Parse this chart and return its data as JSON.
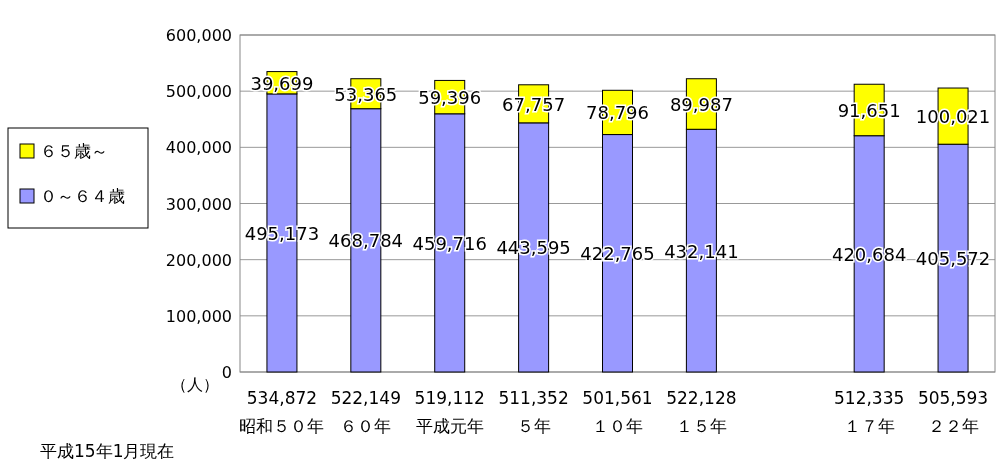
{
  "chart_data": {
    "type": "bar",
    "stacked": true,
    "ylabel": "（人）",
    "categories": [
      "昭和５０年",
      "６０年",
      "平成元年",
      "５年",
      "１０年",
      "１５年",
      null,
      "１７年",
      "２２年"
    ],
    "series": [
      {
        "name": "０～６４歳",
        "color": "#9999ff",
        "values": [
          495173,
          468784,
          459716,
          443595,
          422765,
          432141,
          null,
          420684,
          405572
        ],
        "value_labels": [
          "495,173",
          "468,784",
          "459,716",
          "443,595",
          "422,765",
          "432,141",
          null,
          "420,684",
          "405,572"
        ]
      },
      {
        "name": "６５歳～",
        "color": "#ffff00",
        "values": [
          39699,
          53365,
          59396,
          67757,
          78796,
          89987,
          null,
          91651,
          100021
        ],
        "value_labels": [
          "39,699",
          "53,365",
          "59,396",
          "67,757",
          "78,796",
          "89,987",
          null,
          "91,651",
          "100,021"
        ]
      }
    ],
    "totals": [
      "534,872",
      "522,149",
      "519,112",
      "511,352",
      "501,561",
      "522,128",
      null,
      "512,335",
      "505,593"
    ],
    "ylim": [
      0,
      600000
    ],
    "yticks": [
      {
        "value": 0,
        "label": "0"
      },
      {
        "value": 100000,
        "label": "100,000"
      },
      {
        "value": 200000,
        "label": "200,000"
      },
      {
        "value": 300000,
        "label": "300,000"
      },
      {
        "value": 400000,
        "label": "400,000"
      },
      {
        "value": 500000,
        "label": "500,000"
      },
      {
        "value": 600000,
        "label": "600,000"
      }
    ],
    "grid": "y",
    "legend": "left",
    "annotations": [
      "平成15年1月現在"
    ]
  }
}
